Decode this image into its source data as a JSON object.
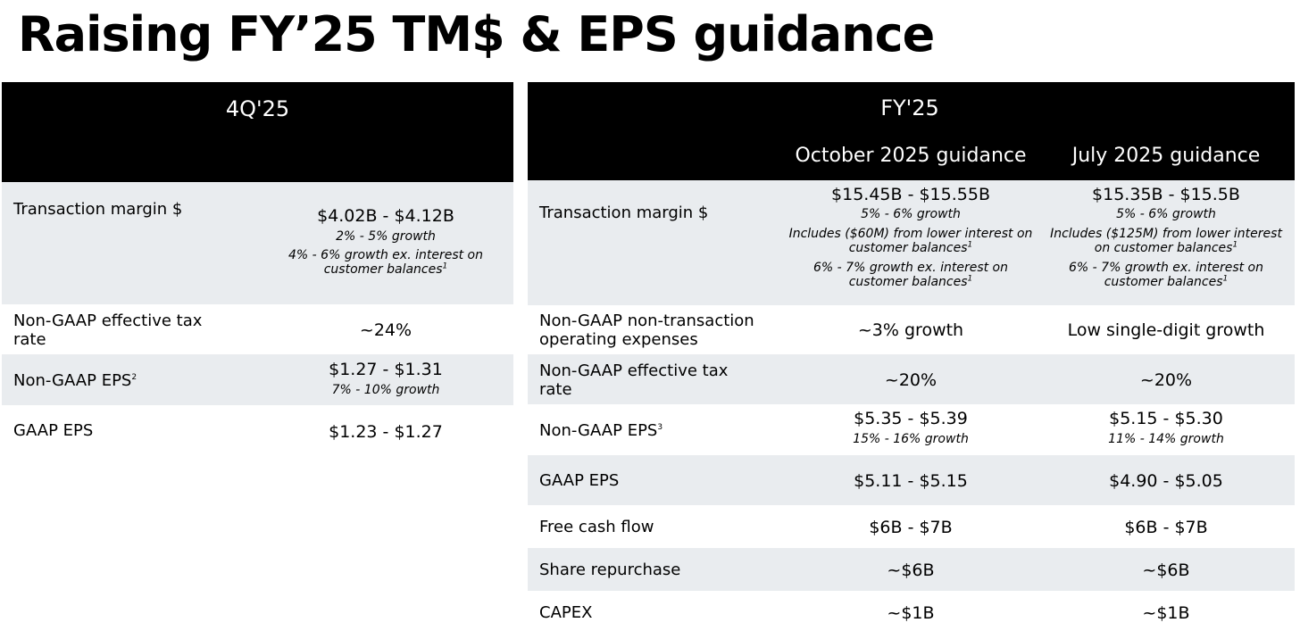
{
  "title": "Raising FY’25 TM$ & EPS guidance",
  "quarter": {
    "header": "4Q'25",
    "rows": [
      {
        "label": "Transaction margin $",
        "value": "$4.02B - $4.12B",
        "sub1": "2% - 5% growth",
        "sub2": "4% - 6% growth ex. interest on customer balances",
        "sup2": "1"
      },
      {
        "label": "Non-GAAP effective tax rate",
        "value": "~24%"
      },
      {
        "label": "Non-GAAP EPS",
        "label_sup": "2",
        "value": "$1.27 - $1.31",
        "sub1": "7% - 10% growth"
      },
      {
        "label": "GAAP EPS",
        "value": "$1.23 - $1.27"
      }
    ]
  },
  "fiscal": {
    "header": "FY'25",
    "col1": "October 2025 guidance",
    "col2": "July 2025 guidance",
    "rows": [
      {
        "label": "Transaction margin $",
        "c1": {
          "value": "$15.45B - $15.55B",
          "sub1": "5% - 6% growth",
          "sub2": "Includes ($60M) from lower interest on customer balances",
          "sub3": "6% - 7% growth ex. interest on customer balances"
        },
        "c2": {
          "value": "$15.35B - $15.5B",
          "sub1": "5% - 6% growth",
          "sub2": "Includes ($125M) from lower interest on customer balances",
          "sub3": "6% - 7% growth ex. interest on customer balances"
        },
        "sup": "1"
      },
      {
        "label": "Non-GAAP non-transaction operating expenses",
        "c1": {
          "value": "~3% growth"
        },
        "c2": {
          "value": "Low single-digit growth"
        }
      },
      {
        "label": "Non-GAAP effective tax rate",
        "c1": {
          "value": "~20%"
        },
        "c2": {
          "value": "~20%"
        }
      },
      {
        "label": "Non-GAAP EPS",
        "label_sup": "3",
        "c1": {
          "value": "$5.35 - $5.39",
          "sub1": "15% - 16% growth"
        },
        "c2": {
          "value": "$5.15 - $5.30",
          "sub1": "11% - 14% growth"
        }
      },
      {
        "label": "GAAP EPS",
        "c1": {
          "value": "$5.11 - $5.15"
        },
        "c2": {
          "value": "$4.90 - $5.05"
        }
      },
      {
        "label": "Free cash flow",
        "c1": {
          "value": "$6B - $7B"
        },
        "c2": {
          "value": "$6B - $7B"
        }
      },
      {
        "label": "Share repurchase",
        "c1": {
          "value": "~$6B"
        },
        "c2": {
          "value": "~$6B"
        }
      },
      {
        "label": "CAPEX",
        "c1": {
          "value": "~$1B"
        },
        "c2": {
          "value": "~$1B"
        }
      }
    ]
  }
}
